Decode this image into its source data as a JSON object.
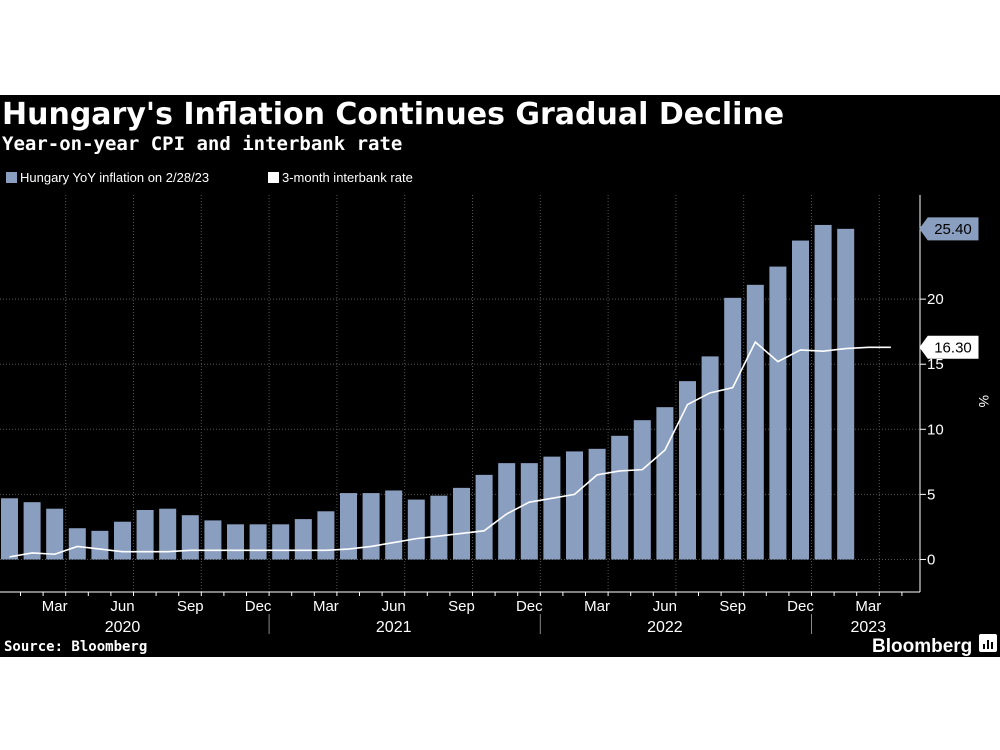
{
  "chart_data": {
    "type": "bar",
    "title": "Hungary's Inflation Continues Gradual Decline",
    "subtitle": "Year-on-year CPI and interbank rate",
    "ylabel": "%",
    "ylim": [
      -2.5,
      28
    ],
    "yticks": [
      0,
      5,
      10,
      15,
      20
    ],
    "grid": true,
    "legend_position": "top-left",
    "x": [
      "2020-01",
      "2020-02",
      "2020-03",
      "2020-04",
      "2020-05",
      "2020-06",
      "2020-07",
      "2020-08",
      "2020-09",
      "2020-10",
      "2020-11",
      "2020-12",
      "2021-01",
      "2021-02",
      "2021-03",
      "2021-04",
      "2021-05",
      "2021-06",
      "2021-07",
      "2021-08",
      "2021-09",
      "2021-10",
      "2021-11",
      "2021-12",
      "2022-01",
      "2022-02",
      "2022-03",
      "2022-04",
      "2022-05",
      "2022-06",
      "2022-07",
      "2022-08",
      "2022-09",
      "2022-10",
      "2022-11",
      "2022-12",
      "2023-01",
      "2023-02",
      "2023-03",
      "2023-04"
    ],
    "month_ticks": [
      {
        "x": "2020-03",
        "label": "Mar"
      },
      {
        "x": "2020-06",
        "label": "Jun"
      },
      {
        "x": "2020-09",
        "label": "Sep"
      },
      {
        "x": "2020-12",
        "label": "Dec"
      },
      {
        "x": "2021-03",
        "label": "Mar"
      },
      {
        "x": "2021-06",
        "label": "Jun"
      },
      {
        "x": "2021-09",
        "label": "Sep"
      },
      {
        "x": "2021-12",
        "label": "Dec"
      },
      {
        "x": "2022-03",
        "label": "Mar"
      },
      {
        "x": "2022-06",
        "label": "Jun"
      },
      {
        "x": "2022-09",
        "label": "Sep"
      },
      {
        "x": "2022-12",
        "label": "Dec"
      },
      {
        "x": "2023-03",
        "label": "Mar"
      }
    ],
    "year_labels": [
      {
        "x": "2020-06",
        "label": "2020"
      },
      {
        "x": "2021-06",
        "label": "2021"
      },
      {
        "x": "2022-06",
        "label": "2022"
      },
      {
        "x": "2023-03",
        "label": "2023"
      }
    ],
    "series": [
      {
        "name": "Hungary YoY inflation on 2/28/23",
        "type": "bar",
        "color": "#8a9fc0",
        "values": [
          4.7,
          4.4,
          3.9,
          2.4,
          2.2,
          2.9,
          3.8,
          3.9,
          3.4,
          3.0,
          2.7,
          2.7,
          2.7,
          3.1,
          3.7,
          5.1,
          5.1,
          5.3,
          4.6,
          4.9,
          5.5,
          6.5,
          7.4,
          7.4,
          7.9,
          8.3,
          8.5,
          9.5,
          10.7,
          11.7,
          13.7,
          15.6,
          20.1,
          21.1,
          22.5,
          24.5,
          25.7,
          25.4,
          null,
          null
        ],
        "last_value_label": "25.40"
      },
      {
        "name": "3-month interbank rate",
        "type": "line",
        "color": "#ffffff",
        "values": [
          0.2,
          0.5,
          0.4,
          1.0,
          0.8,
          0.6,
          0.6,
          0.6,
          0.7,
          0.7,
          0.7,
          0.7,
          0.7,
          0.7,
          0.7,
          0.8,
          1.0,
          1.3,
          1.6,
          1.8,
          2.0,
          2.2,
          3.5,
          4.4,
          4.7,
          5.0,
          6.5,
          6.8,
          6.9,
          8.4,
          11.9,
          12.8,
          13.2,
          16.7,
          15.2,
          16.1,
          16.0,
          16.2,
          16.3,
          16.3
        ],
        "last_value_label": "16.30"
      }
    ]
  },
  "footer": {
    "source": "Source: Bloomberg",
    "brand": "Bloomberg"
  },
  "colors": {
    "background": "#000000",
    "bar": "#8a9fc0",
    "line": "#ffffff",
    "grid": "#555555"
  }
}
